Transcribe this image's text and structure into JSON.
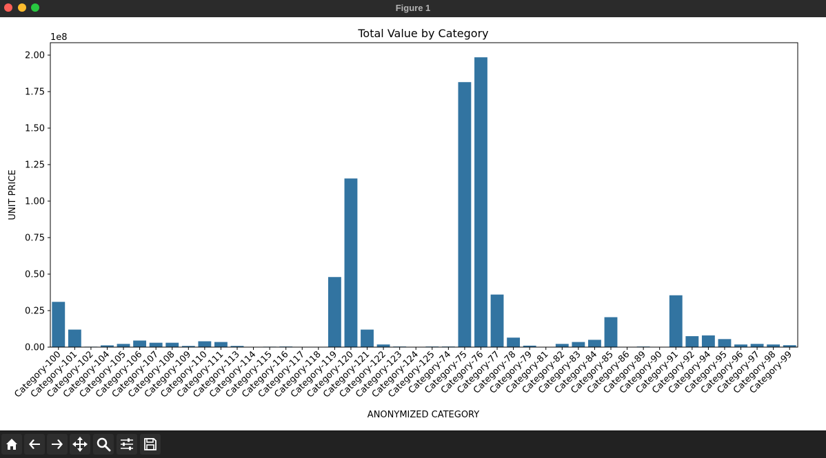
{
  "window": {
    "title": "Figure 1"
  },
  "toolbar": {
    "buttons": [
      "home-icon",
      "back-arrow-icon",
      "forward-arrow-icon",
      "pan-icon",
      "zoom-icon",
      "configure-subplots-icon",
      "save-icon"
    ]
  },
  "colors": {
    "bar": "#3274a1",
    "titlebar": "#2b2b2b",
    "toolbar": "#222222"
  },
  "chart_data": {
    "type": "bar",
    "title": "Total Value by Category",
    "xlabel": "ANONYMIZED CATEGORY",
    "ylabel": "UNIT PRICE",
    "offset_label": "1e8",
    "ylim": [
      0,
      2.085
    ],
    "yticks": [
      0,
      0.25,
      0.5,
      0.75,
      1.0,
      1.25,
      1.5,
      1.75,
      2.0
    ],
    "ytick_labels": [
      "0.00",
      "0.25",
      "0.50",
      "0.75",
      "1.00",
      "1.25",
      "1.50",
      "1.75",
      "2.00"
    ],
    "grid": false,
    "categories": [
      "Category-100",
      "Category-101",
      "Category-102",
      "Category-104",
      "Category-105",
      "Category-106",
      "Category-107",
      "Category-108",
      "Category-109",
      "Category-110",
      "Category-111",
      "Category-113",
      "Category-114",
      "Category-115",
      "Category-116",
      "Category-117",
      "Category-118",
      "Category-119",
      "Category-120",
      "Category-121",
      "Category-122",
      "Category-123",
      "Category-124",
      "Category-125",
      "Category-74",
      "Category-75",
      "Category-76",
      "Category-77",
      "Category-78",
      "Category-79",
      "Category-81",
      "Category-82",
      "Category-83",
      "Category-84",
      "Category-85",
      "Category-86",
      "Category-89",
      "Category-90",
      "Category-91",
      "Category-92",
      "Category-94",
      "Category-95",
      "Category-96",
      "Category-97",
      "Category-98",
      "Category-99"
    ],
    "values": [
      0.31,
      0.12,
      0.003,
      0.012,
      0.022,
      0.045,
      0.03,
      0.03,
      0.008,
      0.04,
      0.035,
      0.008,
      0.001,
      0.003,
      0.004,
      0.0005,
      0.0005,
      0.48,
      1.155,
      0.12,
      0.018,
      0.004,
      0.001,
      0.004,
      0.004,
      1.815,
      1.985,
      0.36,
      0.065,
      0.01,
      0.002,
      0.022,
      0.035,
      0.05,
      0.205,
      0.001,
      0.004,
      0.001,
      0.355,
      0.075,
      0.08,
      0.055,
      0.018,
      0.022,
      0.018,
      0.013
    ]
  }
}
